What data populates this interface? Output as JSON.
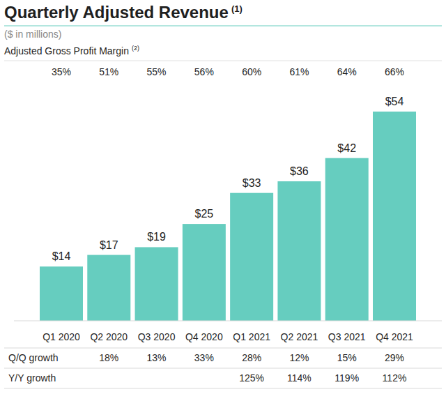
{
  "chart_data": {
    "type": "bar",
    "title": "Quarterly Adjusted Revenue",
    "title_footnote": "(1)",
    "subtitle": "($ in millions)",
    "categories": [
      "Q1 2020",
      "Q2 2020",
      "Q3 2020",
      "Q4 2020",
      "Q1 2021",
      "Q2 2021",
      "Q3 2021",
      "Q4 2021"
    ],
    "values": [
      14,
      17,
      19,
      25,
      33,
      36,
      42,
      54
    ],
    "value_labels": [
      "$14",
      "$17",
      "$19",
      "$25",
      "$33",
      "$36",
      "$42",
      "$54"
    ],
    "data_labels": true,
    "color": "#66cdbf",
    "ylim": [
      0,
      54
    ],
    "tick_labels": "x",
    "rows": [
      {
        "label": "Adjusted Gross Profit Margin",
        "footnote": "(2)",
        "position": "top",
        "values": [
          35,
          51,
          55,
          56,
          60,
          61,
          64,
          66
        ],
        "value_labels": [
          "35%",
          "51%",
          "55%",
          "56%",
          "60%",
          "61%",
          "64%",
          "66%"
        ]
      },
      {
        "label": "Q/Q growth",
        "position": "bottom",
        "values": [
          null,
          18,
          13,
          33,
          28,
          12,
          15,
          29
        ],
        "value_labels": [
          null,
          "18%",
          "13%",
          "33%",
          "28%",
          "12%",
          "15%",
          "29%"
        ]
      },
      {
        "label": "Y/Y growth",
        "position": "bottom",
        "values": [
          null,
          null,
          null,
          null,
          125,
          114,
          119,
          112
        ],
        "value_labels": [
          null,
          null,
          null,
          null,
          "125%",
          "114%",
          "119%",
          "112%"
        ]
      }
    ]
  }
}
